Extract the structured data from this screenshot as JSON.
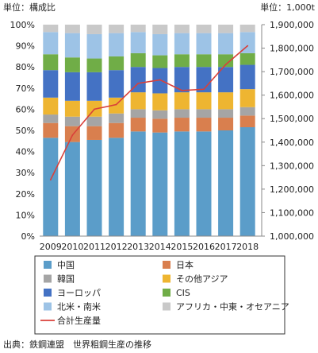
{
  "chart_data": {
    "type": "bar",
    "stacked": true,
    "percent_stacked": true,
    "categories": [
      "2009",
      "2010",
      "2011",
      "2012",
      "2013",
      "2014",
      "2015",
      "2016",
      "2017",
      "2018"
    ],
    "left_unit": "単位：構成比",
    "right_unit": "単位：1,000t",
    "source": "出典：鉄鋼連盟　世界粗鋼生産の推移",
    "left_axis": {
      "min": 0,
      "max": 100,
      "step": 10,
      "tick_labels": [
        "0%",
        "10%",
        "20%",
        "30%",
        "40%",
        "50%",
        "60%",
        "70%",
        "80%",
        "90%",
        "100%"
      ]
    },
    "right_axis": {
      "min": 1000000,
      "max": 1900000,
      "step": 100000,
      "tick_labels": [
        "1,000,000",
        "1,100,000",
        "1,200,000",
        "1,300,000",
        "1,400,000",
        "1,500,000",
        "1,600,000",
        "1,700,000",
        "1,800,000",
        "1,900,000"
      ]
    },
    "grid": false,
    "legend_position": "bottom",
    "series": [
      {
        "name": "中国",
        "color": "#5b9dc9",
        "values": [
          46.5,
          44.5,
          45.5,
          46.5,
          49.5,
          49.0,
          49.5,
          49.5,
          50.0,
          51.5
        ]
      },
      {
        "name": "日本",
        "color": "#d97f4e",
        "values": [
          7.0,
          7.5,
          6.5,
          7.0,
          6.5,
          6.5,
          6.5,
          6.5,
          6.0,
          5.5
        ]
      },
      {
        "name": "韓国",
        "color": "#a5a5a5",
        "values": [
          4.0,
          4.5,
          4.5,
          4.5,
          4.0,
          4.0,
          4.0,
          4.0,
          4.0,
          4.0
        ]
      },
      {
        "name": "その他アジア",
        "color": "#eeb531",
        "values": [
          8.0,
          7.5,
          7.5,
          7.5,
          8.0,
          8.0,
          8.0,
          8.0,
          8.0,
          8.5
        ]
      },
      {
        "name": "ヨーロッパ",
        "color": "#4472c4",
        "values": [
          13.0,
          13.5,
          13.5,
          13.0,
          12.0,
          12.0,
          12.0,
          12.0,
          12.0,
          11.5
        ]
      },
      {
        "name": "CIS",
        "color": "#70ad47",
        "values": [
          7.5,
          7.0,
          6.5,
          6.5,
          6.5,
          6.0,
          6.0,
          6.0,
          6.0,
          5.5
        ]
      },
      {
        "name": "北米・南米",
        "color": "#9dc3e6",
        "values": [
          10.5,
          11.5,
          11.5,
          11.0,
          10.0,
          10.0,
          10.0,
          10.0,
          10.0,
          10.0
        ]
      },
      {
        "name": "アフリカ・中東・オセアニア",
        "color": "#c9c9c9",
        "values": [
          3.5,
          4.0,
          4.5,
          4.0,
          3.5,
          4.5,
          4.0,
          4.0,
          4.0,
          3.5
        ]
      }
    ],
    "line_series": {
      "name": "合計生産量",
      "color": "#d9403a",
      "axis": "right",
      "values": [
        1240000,
        1430000,
        1540000,
        1560000,
        1650000,
        1665000,
        1620000,
        1625000,
        1730000,
        1810000
      ]
    }
  }
}
